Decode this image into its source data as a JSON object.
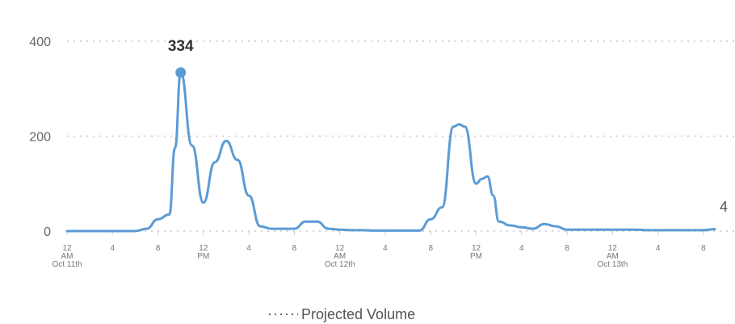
{
  "chart_data": {
    "type": "line",
    "title": "",
    "xlabel": "",
    "ylabel": "",
    "ylim": [
      0,
      400
    ],
    "yticks": [
      0,
      200,
      400
    ],
    "grid": true,
    "legend_position": "bottom-center",
    "colors": {
      "line": "#5b9bd5",
      "grid": "#c8c8c8",
      "projected": "#666666"
    },
    "x_ticks": [
      {
        "t": 0,
        "lines": [
          "12",
          "AM",
          "Oct 11th"
        ]
      },
      {
        "t": 4,
        "lines": [
          "4"
        ]
      },
      {
        "t": 8,
        "lines": [
          "8"
        ]
      },
      {
        "t": 12,
        "lines": [
          "12",
          "PM"
        ]
      },
      {
        "t": 16,
        "lines": [
          "4"
        ]
      },
      {
        "t": 20,
        "lines": [
          "8"
        ]
      },
      {
        "t": 24,
        "lines": [
          "12",
          "AM",
          "Oct 12th"
        ]
      },
      {
        "t": 28,
        "lines": [
          "4"
        ]
      },
      {
        "t": 32,
        "lines": [
          "8"
        ]
      },
      {
        "t": 36,
        "lines": [
          "12",
          "PM"
        ]
      },
      {
        "t": 40,
        "lines": [
          "4"
        ]
      },
      {
        "t": 44,
        "lines": [
          "8"
        ]
      },
      {
        "t": 48,
        "lines": [
          "12",
          "AM",
          "Oct 13th"
        ]
      },
      {
        "t": 52,
        "lines": [
          "4"
        ]
      },
      {
        "t": 56,
        "lines": [
          "8"
        ]
      }
    ],
    "series": [
      {
        "x": [
          0,
          2,
          4,
          6,
          7,
          8,
          9,
          9.5,
          10,
          11,
          12,
          13,
          14,
          15,
          16,
          17,
          18,
          19,
          20,
          21,
          22,
          23,
          24,
          25,
          26,
          27,
          28,
          29,
          30,
          31,
          32,
          33,
          34,
          34.5,
          35,
          36,
          36.5,
          37,
          37.5,
          38,
          39,
          40,
          41,
          42,
          43,
          44,
          45,
          46,
          47,
          48,
          49,
          50,
          51,
          52,
          53,
          54,
          55,
          56,
          57
        ],
        "y": [
          0,
          0,
          0,
          0,
          5,
          25,
          35,
          175,
          334,
          180,
          60,
          145,
          190,
          150,
          75,
          10,
          5,
          5,
          5,
          20,
          20,
          5,
          3,
          2,
          2,
          1,
          1,
          1,
          1,
          1,
          25,
          50,
          220,
          225,
          220,
          100,
          110,
          115,
          75,
          20,
          12,
          8,
          5,
          15,
          10,
          3,
          3,
          3,
          3,
          3,
          3,
          3,
          2,
          2,
          2,
          2,
          2,
          2,
          4
        ]
      }
    ],
    "peak": {
      "x": 10,
      "y": 334,
      "label": "334"
    },
    "end_label": {
      "x": 57,
      "y": 4,
      "label": "4"
    },
    "legend": {
      "label": "Projected Volume"
    }
  }
}
